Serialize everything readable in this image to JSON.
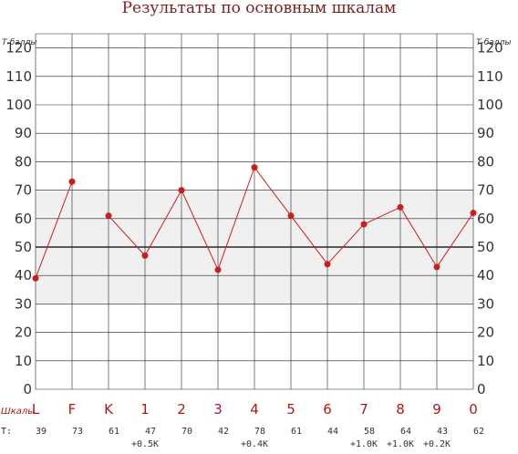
{
  "chart_data": {
    "type": "line",
    "title": "Результаты по основным шкалам",
    "ylabel": "Т-баллы",
    "ylim": [
      0,
      125
    ],
    "yticks": [
      0,
      10,
      20,
      30,
      40,
      50,
      60,
      70,
      80,
      90,
      100,
      110,
      120
    ],
    "x_prefix": "Шкалы",
    "t_prefix": "T:",
    "normal_band": [
      30,
      70
    ],
    "reference_line": 50,
    "colors": {
      "line": "#c81e1e",
      "point": "#c81e1e",
      "band": "#f0f0f0",
      "grid": "#222222"
    },
    "categories": [
      "L",
      "F",
      "K",
      "1",
      "2",
      "3",
      "4",
      "5",
      "6",
      "7",
      "8",
      "9",
      "0"
    ],
    "values": [
      39,
      73,
      61,
      47,
      70,
      42,
      78,
      61,
      44,
      58,
      64,
      43,
      62
    ],
    "connected": [
      true,
      true,
      false,
      true,
      true,
      true,
      true,
      true,
      true,
      true,
      true,
      true,
      true
    ],
    "corrections": [
      "",
      "",
      "",
      "+0.5K",
      "",
      "",
      "+0.4K",
      "",
      "",
      "+1.0K",
      "+1.0K",
      "+0.2K",
      ""
    ]
  }
}
